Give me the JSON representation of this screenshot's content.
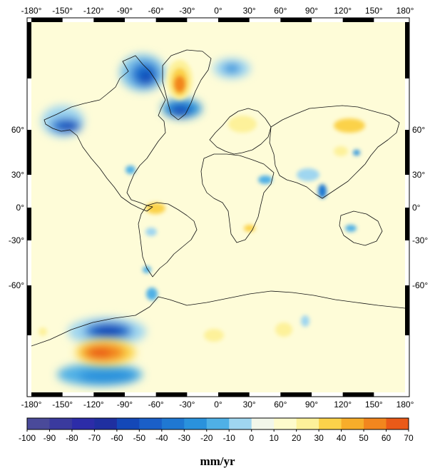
{
  "map": {
    "top_lon_labels": [
      "-180°",
      "-150°",
      "-120°",
      "-90°",
      "-60°",
      "-30°",
      "0°",
      "30°",
      "60°",
      "90°",
      "120°",
      "150°",
      "180°"
    ],
    "bottom_lon_labels": [
      "-180°",
      "-150°",
      "-120°",
      "-90°",
      "-60°",
      "-30°",
      "0°",
      "30°",
      "60°",
      "90°",
      "120°",
      "150°",
      "180°"
    ],
    "left_lat_labels": [
      "60°",
      "30°",
      "0°",
      "-30°",
      "-60°"
    ],
    "right_lat_labels": [
      "60°",
      "30°",
      "0°",
      "-30°",
      "-60°"
    ],
    "colors": {
      "background": "#fefcd8",
      "coast": "#111111"
    }
  },
  "colorbar": {
    "tick_labels": [
      "-100",
      "-90",
      "-80",
      "-70",
      "-60",
      "-50",
      "-40",
      "-30",
      "-20",
      "-10",
      "0",
      "10",
      "20",
      "30",
      "40",
      "50",
      "60",
      "70"
    ],
    "colors": [
      "#4a4a9a",
      "#3a3a9e",
      "#2c2ca8",
      "#1f2fa0",
      "#1448b8",
      "#1a5fc8",
      "#1f78d2",
      "#2a92dc",
      "#4fb0e6",
      "#9fd6f0",
      "#f2f7ea",
      "#fefbcc",
      "#fdf19a",
      "#fbd24a",
      "#f7ad2a",
      "#f2861e",
      "#ea5a18"
    ],
    "unit": "mm/yr"
  },
  "anomalies": [
    {
      "name": "greenland-west",
      "color": "#1a5fc8"
    },
    {
      "name": "greenland-east",
      "color": "#f2861e"
    },
    {
      "name": "alaska",
      "color": "#1448b8"
    },
    {
      "name": "antarctica-west-blue",
      "color": "#1448b8"
    },
    {
      "name": "antarctica-west-red",
      "color": "#ea5a18"
    }
  ]
}
